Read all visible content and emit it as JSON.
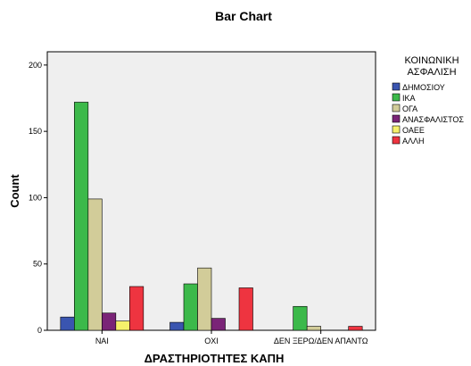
{
  "chart_data": {
    "type": "bar",
    "title": "Bar Chart",
    "xlabel": "ΔΡΑΣΤΗΡΙΟΤΗΤΕΣ ΚΑΠΗ",
    "ylabel": "Count",
    "ylim": [
      0,
      210
    ],
    "yticks": [
      0,
      50,
      100,
      150,
      200
    ],
    "categories": [
      "ΝΑΙ",
      "ΟΧΙ",
      "ΔΕΝ ΞΕΡΩ/ΔΕΝ ΑΠΑΝΤΩ"
    ],
    "legend_title_lines": [
      "ΚΟΙΝΩΝΙΚΗ",
      "ΑΣΦΑΛΙΣΗ"
    ],
    "legend_position": "right",
    "grid": false,
    "background": "#efefef",
    "series": [
      {
        "name": "ΔΗΜΟΣΙΟΥ",
        "color": "#3a55b0",
        "values": [
          10,
          6,
          null
        ]
      },
      {
        "name": "ΙΚΑ",
        "color": "#3cb94a",
        "values": [
          172,
          35,
          18
        ]
      },
      {
        "name": "ΟΓΑ",
        "color": "#d2cc99",
        "values": [
          99,
          47,
          3
        ]
      },
      {
        "name": "ΑΝΑΣΦΑΛΙΣΤΟΣ",
        "color": "#7a2477",
        "values": [
          13,
          9,
          null
        ]
      },
      {
        "name": "ΟΑΕΕ",
        "color": "#f6f16b",
        "values": [
          7,
          null,
          null
        ]
      },
      {
        "name": "ΑΛΛΗ",
        "color": "#ee3440",
        "values": [
          33,
          32,
          3
        ]
      }
    ]
  }
}
